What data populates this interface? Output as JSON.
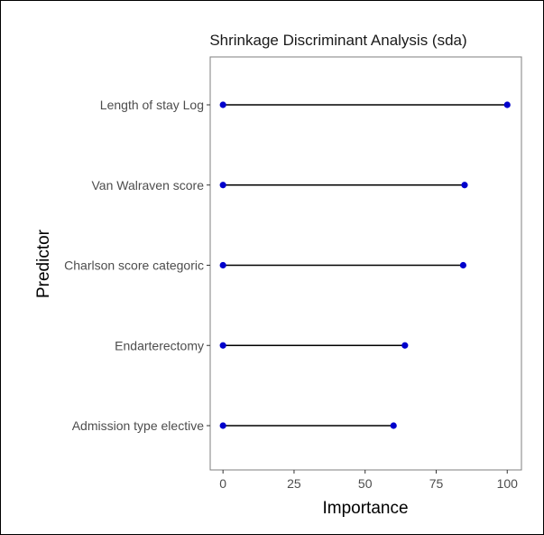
{
  "chart_data": {
    "type": "lollipop",
    "title": "Shrinkage Discriminant Analysis (sda)",
    "xlabel": "Importance",
    "ylabel": "Predictor",
    "categories": [
      "Length of stay Log",
      "Van Walraven score",
      "Charlson score categoric",
      "Endarterectomy",
      "Admission type elective"
    ],
    "values": [
      100,
      85,
      84.5,
      64,
      60
    ],
    "baseline": 0,
    "xticks": [
      0,
      25,
      50,
      75,
      100
    ],
    "xlim": [
      -4.5,
      105
    ],
    "grid": false,
    "colors": {
      "point": "#0000cc",
      "segment": "#000000"
    }
  }
}
